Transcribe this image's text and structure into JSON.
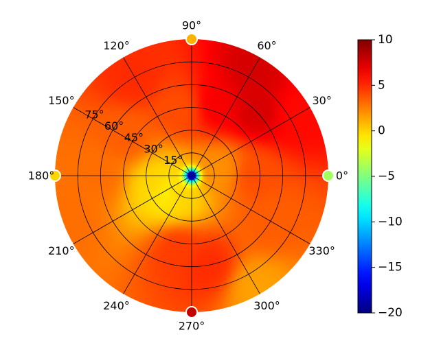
{
  "chart_data": {
    "type": "heatmap",
    "subtype": "polar",
    "colormap": "jet",
    "title": "",
    "angular_tick_labels": [
      "0°",
      "30°",
      "60°",
      "90°",
      "120°",
      "150°",
      "180°",
      "210°",
      "240°",
      "270°",
      "300°",
      "330°"
    ],
    "angular_ticks_deg": [
      0,
      30,
      60,
      90,
      120,
      150,
      180,
      210,
      240,
      270,
      300,
      330
    ],
    "radial_tick_labels": [
      "15°",
      "30°",
      "45°",
      "60°",
      "75°"
    ],
    "radial_ticks_deg": [
      15,
      30,
      45,
      60,
      75
    ],
    "radial_range_deg": [
      0,
      90
    ],
    "colorbar": {
      "range": [
        -20,
        10
      ],
      "ticks": [
        -20,
        -15,
        -10,
        -5,
        0,
        5,
        10
      ],
      "tick_labels": [
        "−20",
        "−15",
        "−10",
        "−5",
        "0",
        "5",
        "10"
      ]
    },
    "grid": true,
    "center_value": -19,
    "field_anchors": [
      {
        "azimuth_deg": 45,
        "polar_deg": 60,
        "value": 7.5
      },
      {
        "azimuth_deg": 60,
        "polar_deg": 80,
        "value": 7.5
      },
      {
        "azimuth_deg": 30,
        "polar_deg": 80,
        "value": 6
      },
      {
        "azimuth_deg": 70,
        "polar_deg": 50,
        "value": 6.5
      },
      {
        "azimuth_deg": 100,
        "polar_deg": 45,
        "value": 4
      },
      {
        "azimuth_deg": 120,
        "polar_deg": 75,
        "value": 5
      },
      {
        "azimuth_deg": 150,
        "polar_deg": 50,
        "value": 3.5
      },
      {
        "azimuth_deg": 180,
        "polar_deg": 60,
        "value": 3
      },
      {
        "azimuth_deg": 195,
        "polar_deg": 25,
        "value": 0
      },
      {
        "azimuth_deg": 215,
        "polar_deg": 20,
        "value": -1
      },
      {
        "azimuth_deg": 240,
        "polar_deg": 15,
        "value": 0
      },
      {
        "azimuth_deg": 200,
        "polar_deg": 85,
        "value": 3
      },
      {
        "azimuth_deg": 260,
        "polar_deg": 50,
        "value": 4.5
      },
      {
        "azimuth_deg": 280,
        "polar_deg": 60,
        "value": 5
      },
      {
        "azimuth_deg": 300,
        "polar_deg": 85,
        "value": 1.5
      },
      {
        "azimuth_deg": 330,
        "polar_deg": 60,
        "value": 3.5
      },
      {
        "azimuth_deg": 0,
        "polar_deg": 40,
        "value": 4
      },
      {
        "azimuth_deg": 10,
        "polar_deg": 20,
        "value": 2
      }
    ],
    "edge_markers": [
      {
        "azimuth_deg": 0,
        "value": -4
      },
      {
        "azimuth_deg": 90,
        "value": 1
      },
      {
        "azimuth_deg": 180,
        "value": 0
      },
      {
        "azimuth_deg": 270,
        "value": 8
      }
    ]
  }
}
